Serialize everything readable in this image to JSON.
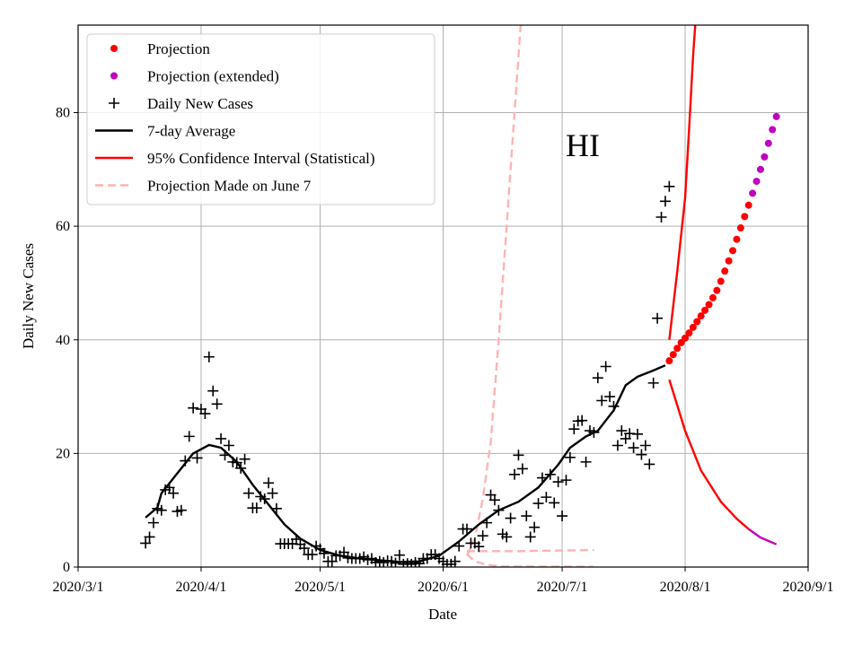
{
  "chart_data": {
    "type": "line",
    "annotation": "HI",
    "xlabel": "Date",
    "ylabel": "Daily New Cases",
    "xlim": [
      "2020-03-01",
      "2020-09-01"
    ],
    "ylim": [
      0,
      95.4
    ],
    "grid": true,
    "legend_placement": "top-left",
    "x_ticks": [
      "2020/3/1",
      "2020/4/1",
      "2020/5/1",
      "2020/6/1",
      "2020/7/1",
      "2020/8/1",
      "2020/9/1"
    ],
    "x_tick_dates": [
      "2020-03-01",
      "2020-04-01",
      "2020-05-01",
      "2020-06-01",
      "2020-07-01",
      "2020-08-01",
      "2020-09-01"
    ],
    "y_ticks": [
      0,
      20,
      40,
      60,
      80
    ],
    "colors": {
      "projection": "#ff0000",
      "extended": "#c000c0",
      "daily": "#000000",
      "avg": "#000000",
      "ci": "#ff0000",
      "june7": "#ffb3b3"
    },
    "legend": [
      "Projection",
      "Projection (extended)",
      "Daily New Cases",
      "7-day Average",
      "95% Confidence Interval (Statistical)",
      "Projection Made on June 7"
    ],
    "daily": {
      "dates": [
        "2020-03-18",
        "2020-03-19",
        "2020-03-20",
        "2020-03-21",
        "2020-03-22",
        "2020-03-23",
        "2020-03-24",
        "2020-03-25",
        "2020-03-26",
        "2020-03-27",
        "2020-03-28",
        "2020-03-29",
        "2020-03-30",
        "2020-03-31",
        "2020-04-01",
        "2020-04-02",
        "2020-04-03",
        "2020-04-04",
        "2020-04-05",
        "2020-04-06",
        "2020-04-07",
        "2020-04-08",
        "2020-04-09",
        "2020-04-10",
        "2020-04-11",
        "2020-04-12",
        "2020-04-13",
        "2020-04-14",
        "2020-04-15",
        "2020-04-16",
        "2020-04-17",
        "2020-04-18",
        "2020-04-19",
        "2020-04-20",
        "2020-04-21",
        "2020-04-22",
        "2020-04-23",
        "2020-04-24",
        "2020-04-25",
        "2020-04-26",
        "2020-04-27",
        "2020-04-28",
        "2020-04-29",
        "2020-04-30",
        "2020-05-01",
        "2020-05-02",
        "2020-05-03",
        "2020-05-04",
        "2020-05-05",
        "2020-05-06",
        "2020-05-07",
        "2020-05-08",
        "2020-05-09",
        "2020-05-10",
        "2020-05-11",
        "2020-05-12",
        "2020-05-13",
        "2020-05-14",
        "2020-05-15",
        "2020-05-16",
        "2020-05-17",
        "2020-05-18",
        "2020-05-19",
        "2020-05-20",
        "2020-05-21",
        "2020-05-22",
        "2020-05-23",
        "2020-05-24",
        "2020-05-25",
        "2020-05-26",
        "2020-05-27",
        "2020-05-28",
        "2020-05-29",
        "2020-05-30",
        "2020-05-31",
        "2020-06-01",
        "2020-06-02",
        "2020-06-03",
        "2020-06-04",
        "2020-06-05",
        "2020-06-06",
        "2020-06-07",
        "2020-06-08",
        "2020-06-09",
        "2020-06-10",
        "2020-06-11",
        "2020-06-12",
        "2020-06-13",
        "2020-06-14",
        "2020-06-15",
        "2020-06-16",
        "2020-06-17",
        "2020-06-18",
        "2020-06-19",
        "2020-06-20",
        "2020-06-21",
        "2020-06-22",
        "2020-06-23",
        "2020-06-24",
        "2020-06-25",
        "2020-06-26",
        "2020-06-27",
        "2020-06-28",
        "2020-06-29",
        "2020-06-30",
        "2020-07-01",
        "2020-07-02",
        "2020-07-03",
        "2020-07-04",
        "2020-07-05",
        "2020-07-06",
        "2020-07-07",
        "2020-07-08",
        "2020-07-09",
        "2020-07-10",
        "2020-07-11",
        "2020-07-12",
        "2020-07-13",
        "2020-07-14",
        "2020-07-15",
        "2020-07-16",
        "2020-07-17",
        "2020-07-18",
        "2020-07-19",
        "2020-07-20",
        "2020-07-21",
        "2020-07-22",
        "2020-07-23",
        "2020-07-24",
        "2020-07-25",
        "2020-07-26",
        "2020-07-27",
        "2020-07-28"
      ],
      "values": [
        4.2,
        5.3,
        7.8,
        10.3,
        10,
        13.6,
        14,
        13,
        9.8,
        10,
        18.7,
        23,
        28,
        19.2,
        27.8,
        27,
        37,
        31,
        28.7,
        22.6,
        19.7,
        21.4,
        18.5,
        18.4,
        17.4,
        19,
        13,
        10.4,
        10.4,
        12.4,
        12,
        14.8,
        13,
        10.3,
        4.1,
        4.1,
        4.1,
        4.1,
        4.9,
        4,
        3.3,
        2.2,
        2.2,
        3.7,
        3.2,
        2.4,
        1,
        1,
        2,
        2,
        2.6,
        1.6,
        1.5,
        1.5,
        1.5,
        1.8,
        1.3,
        1.5,
        0.8,
        1,
        0.8,
        1.1,
        1,
        0.7,
        2.1,
        0.5,
        0.6,
        0.5,
        0.8,
        0.6,
        1.5,
        1.5,
        2.2,
        2.2,
        1.5,
        1,
        0.5,
        0.5,
        1,
        3.7,
        6.7,
        6.7,
        4.2,
        4.2,
        3.6,
        5.5,
        7.8,
        12.7,
        11.8,
        10,
        5.8,
        5.3,
        8.6,
        16.3,
        19.7,
        17.3,
        9,
        5.3,
        7,
        11.2,
        15.7,
        12.3,
        16.3,
        11.3,
        15,
        9,
        15.3,
        19.3,
        24.3,
        25.7,
        25.8,
        18.5,
        24,
        23.7,
        33.3,
        29.3,
        35.3,
        30,
        28.3,
        21.4,
        24,
        22.6,
        23.5,
        21,
        23.4,
        19.8,
        21.4,
        18.1,
        32.4,
        43.8,
        61.6,
        64.4,
        67
      ]
    },
    "avg": {
      "dates": [
        "2020-03-18",
        "2020-03-21",
        "2020-03-22",
        "2020-03-26",
        "2020-03-30",
        "2020-04-03",
        "2020-04-06",
        "2020-04-10",
        "2020-04-14",
        "2020-04-18",
        "2020-04-22",
        "2020-04-26",
        "2020-05-01",
        "2020-05-06",
        "2020-05-11",
        "2020-05-16",
        "2020-05-21",
        "2020-05-26",
        "2020-05-31",
        "2020-06-05",
        "2020-06-10",
        "2020-06-15",
        "2020-06-20",
        "2020-06-25",
        "2020-06-30",
        "2020-07-03",
        "2020-07-07",
        "2020-07-10",
        "2020-07-14",
        "2020-07-17",
        "2020-07-20",
        "2020-07-24",
        "2020-07-27"
      ],
      "values": [
        8.7,
        10.5,
        13,
        16.5,
        20,
        21.5,
        21,
        18.5,
        14.5,
        11,
        7.5,
        5,
        3,
        2,
        1.5,
        1.2,
        0.9,
        1,
        2,
        4.5,
        7.5,
        10,
        11.5,
        14,
        18,
        21,
        23,
        24,
        27.6,
        32,
        33.5,
        34.6,
        35.5
      ]
    },
    "projection": {
      "dates": [
        "2020-07-28",
        "2020-07-29",
        "2020-07-30",
        "2020-07-31",
        "2020-08-01",
        "2020-08-02",
        "2020-08-03",
        "2020-08-04",
        "2020-08-05",
        "2020-08-06",
        "2020-08-07",
        "2020-08-08",
        "2020-08-09",
        "2020-08-10",
        "2020-08-11",
        "2020-08-12",
        "2020-08-13",
        "2020-08-14",
        "2020-08-15",
        "2020-08-16",
        "2020-08-17"
      ],
      "values": [
        36.3,
        37.4,
        38.5,
        39.5,
        40.3,
        41.2,
        42.2,
        43.2,
        44.2,
        45.2,
        46.2,
        47.4,
        48.7,
        50.3,
        52.1,
        53.9,
        55.7,
        57.7,
        59.7,
        61.7,
        63.7
      ]
    },
    "projection_extended": {
      "dates": [
        "2020-08-18",
        "2020-08-19",
        "2020-08-20",
        "2020-08-21",
        "2020-08-22",
        "2020-08-23",
        "2020-08-24"
      ],
      "values": [
        65.8,
        67.9,
        70,
        72.2,
        74.6,
        77,
        79.3
      ]
    },
    "ci_upper": {
      "dates": [
        "2020-07-28",
        "2020-07-30",
        "2020-08-01",
        "2020-08-02",
        "2020-08-03",
        "2020-08-04"
      ],
      "values": [
        40,
        52,
        65,
        77,
        90,
        100
      ]
    },
    "ci_lower": {
      "dates": [
        "2020-07-28",
        "2020-08-01",
        "2020-08-05",
        "2020-08-10",
        "2020-08-14",
        "2020-08-17"
      ],
      "values": [
        33,
        24,
        17,
        11.5,
        8.5,
        6.7
      ]
    },
    "ci_lower_extended": {
      "dates": [
        "2020-08-17",
        "2020-08-20",
        "2020-08-24"
      ],
      "values": [
        6.7,
        5.2,
        4
      ]
    },
    "june7_upper": {
      "dates": [
        "2020-06-07",
        "2020-06-09",
        "2020-06-11",
        "2020-06-13",
        "2020-06-15",
        "2020-06-17",
        "2020-06-19",
        "2020-06-21"
      ],
      "values": [
        2,
        5,
        12,
        22,
        40,
        60,
        80,
        100
      ]
    },
    "june7_mid": {
      "dates": [
        "2020-06-07",
        "2020-06-20",
        "2020-07-09"
      ],
      "values": [
        2.8,
        2.8,
        3.0
      ]
    },
    "june7_lower": {
      "dates": [
        "2020-06-07",
        "2020-06-09",
        "2020-06-12",
        "2020-06-16",
        "2020-07-09"
      ],
      "values": [
        2.3,
        1.0,
        0.4,
        0.1,
        0.05
      ]
    }
  }
}
